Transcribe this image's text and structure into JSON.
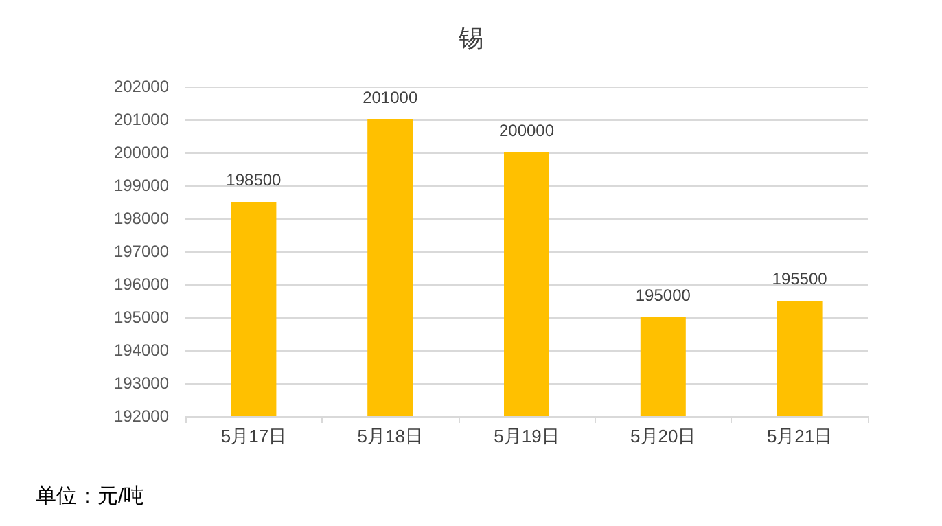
{
  "chart_data": {
    "type": "bar",
    "title": "锡",
    "categories": [
      "5月17日",
      "5月18日",
      "5月19日",
      "5月20日",
      "5月21日"
    ],
    "values": [
      198500,
      201000,
      200000,
      195000,
      195500
    ],
    "color": "#ffc000",
    "ylim": [
      192000,
      202000
    ],
    "yticks": [
      192000,
      193000,
      194000,
      195000,
      196000,
      197000,
      198000,
      199000,
      200000,
      201000,
      202000
    ],
    "grid": "y",
    "data_labels": true,
    "annotations": [
      "单位：元/吨"
    ]
  }
}
